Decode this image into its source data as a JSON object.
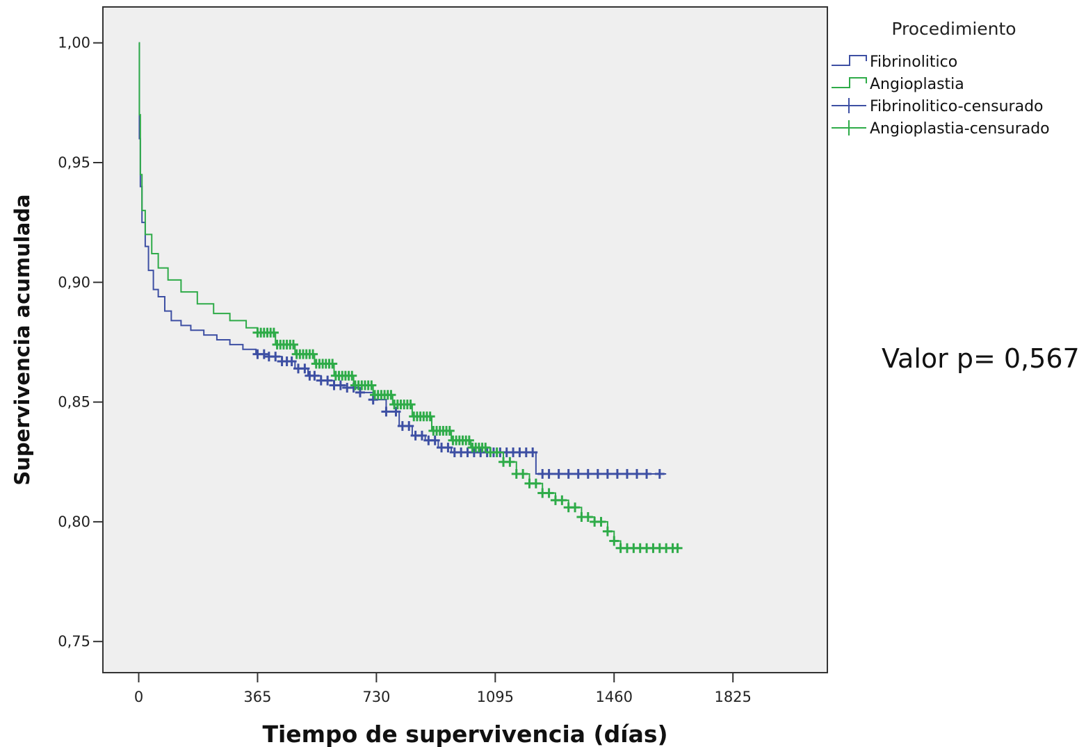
{
  "chart_data": {
    "type": "line",
    "xlabel": "Tiempo de supervivencia (días)",
    "ylabel": "Supervivencia acumulada",
    "xlim": [
      -110,
      2115
    ],
    "ylim": [
      0.737,
      1.015
    ],
    "x_ticks": [
      0,
      365,
      730,
      1095,
      1460,
      1825
    ],
    "x_tick_labels": [
      "0",
      "365",
      "730",
      "1095",
      "1460",
      "1825"
    ],
    "y_ticks": [
      0.75,
      0.8,
      0.85,
      0.9,
      0.95,
      1.0
    ],
    "y_tick_labels": [
      "0,75",
      "0,80",
      "0,85",
      "0,90",
      "0,95",
      "1,00"
    ],
    "grid": false,
    "legend": {
      "title": "Procedimiento",
      "placement": "top-right outside",
      "entries": [
        "Fibrinolitico",
        "Angioplastia",
        "Fibrinolitico-censurado",
        "Angioplastia-censurado"
      ]
    },
    "annotation": "Valor p= 0,567",
    "colors": {
      "Fibrinolitico": "#3d4fa3",
      "Angioplastia": "#2eab48",
      "plot_bg": "#efefef"
    },
    "series": [
      {
        "name": "Fibrinolitico",
        "x": [
          0,
          2,
          5,
          10,
          20,
          30,
          45,
          60,
          80,
          100,
          130,
          160,
          200,
          240,
          280,
          320,
          360,
          400,
          440,
          480,
          520,
          560,
          600,
          640,
          680,
          720,
          760,
          800,
          840,
          880,
          920,
          960,
          1000,
          1050,
          1100,
          1150,
          1200,
          1220,
          1300,
          1400,
          1500,
          1620
        ],
        "y": [
          1.0,
          0.96,
          0.94,
          0.925,
          0.915,
          0.905,
          0.897,
          0.894,
          0.888,
          0.884,
          0.882,
          0.88,
          0.878,
          0.876,
          0.874,
          0.872,
          0.87,
          0.869,
          0.867,
          0.864,
          0.861,
          0.859,
          0.857,
          0.856,
          0.854,
          0.851,
          0.846,
          0.84,
          0.836,
          0.834,
          0.831,
          0.829,
          0.829,
          0.829,
          0.829,
          0.829,
          0.829,
          0.82,
          0.82,
          0.82,
          0.82,
          0.82
        ],
        "censored_x": [
          365,
          385,
          400,
          420,
          440,
          455,
          470,
          490,
          510,
          525,
          540,
          560,
          580,
          600,
          620,
          640,
          660,
          680,
          720,
          760,
          790,
          810,
          830,
          850,
          870,
          890,
          910,
          930,
          950,
          970,
          990,
          1010,
          1030,
          1050,
          1070,
          1090,
          1110,
          1130,
          1150,
          1170,
          1190,
          1210,
          1240,
          1260,
          1290,
          1320,
          1350,
          1380,
          1410,
          1440,
          1470,
          1500,
          1530,
          1560,
          1600
        ]
      },
      {
        "name": "Angioplastia",
        "x": [
          0,
          2,
          5,
          10,
          20,
          40,
          60,
          90,
          130,
          180,
          230,
          280,
          330,
          365,
          420,
          480,
          540,
          600,
          660,
          720,
          780,
          840,
          900,
          960,
          1020,
          1080,
          1120,
          1160,
          1200,
          1240,
          1280,
          1320,
          1360,
          1400,
          1440,
          1460,
          1480,
          1500,
          1550,
          1650
        ],
        "y": [
          1.0,
          0.97,
          0.945,
          0.93,
          0.92,
          0.912,
          0.906,
          0.901,
          0.896,
          0.891,
          0.887,
          0.884,
          0.881,
          0.879,
          0.874,
          0.87,
          0.866,
          0.861,
          0.857,
          0.853,
          0.849,
          0.844,
          0.838,
          0.834,
          0.831,
          0.829,
          0.825,
          0.82,
          0.816,
          0.812,
          0.809,
          0.806,
          0.802,
          0.8,
          0.796,
          0.792,
          0.789,
          0.789,
          0.789,
          0.789
        ],
        "censored_x": [
          365,
          375,
          385,
          395,
          405,
          415,
          425,
          435,
          445,
          455,
          465,
          475,
          485,
          495,
          505,
          515,
          525,
          535,
          545,
          555,
          565,
          575,
          585,
          595,
          605,
          615,
          625,
          635,
          645,
          655,
          665,
          675,
          685,
          695,
          705,
          715,
          725,
          735,
          745,
          755,
          765,
          775,
          785,
          795,
          805,
          815,
          825,
          835,
          845,
          855,
          865,
          875,
          885,
          895,
          905,
          915,
          925,
          935,
          945,
          955,
          965,
          975,
          985,
          995,
          1005,
          1015,
          1025,
          1035,
          1045,
          1055,
          1065,
          1080,
          1100,
          1120,
          1140,
          1160,
          1180,
          1200,
          1220,
          1240,
          1260,
          1280,
          1300,
          1320,
          1340,
          1360,
          1380,
          1400,
          1420,
          1440,
          1460,
          1480,
          1500,
          1520,
          1540,
          1560,
          1580,
          1600,
          1620,
          1640,
          1655
        ]
      }
    ]
  }
}
